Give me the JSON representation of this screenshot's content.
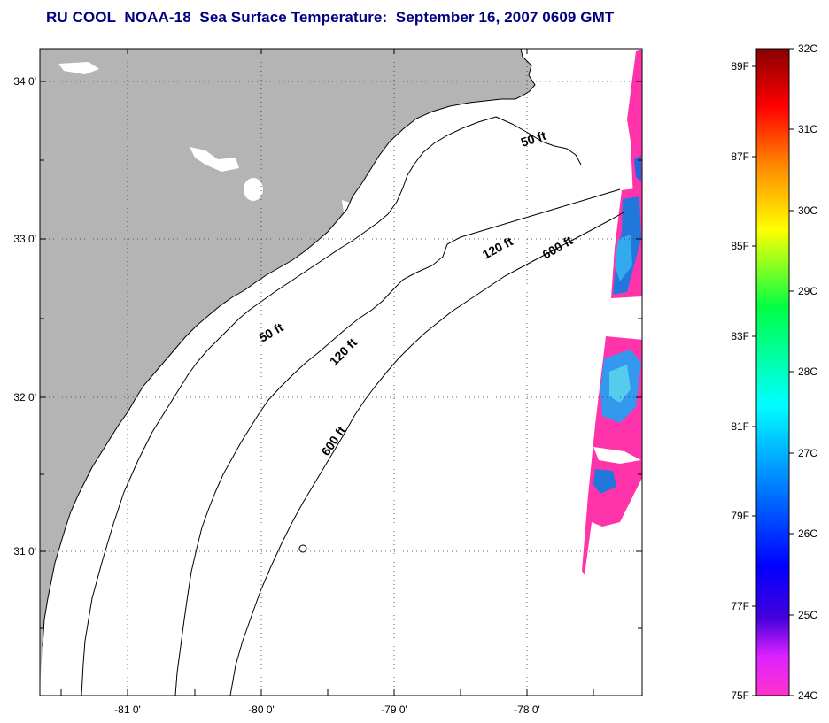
{
  "title": "RU COOL  NOAA-18  Sea Surface Temperature:  September 16, 2007 0609 GMT",
  "map": {
    "lat_labels": [
      "34 0'",
      "33 0'",
      "32 0'",
      "31 0'"
    ],
    "lon_labels": [
      "-81 0'",
      "-80 0'",
      "-79 0'",
      "-78 0'"
    ],
    "contour_labels": [
      "50 ft",
      "120 ft",
      "600 ft",
      "50 ft",
      "120 ft",
      "600 ft"
    ],
    "colors": {
      "land": "#b4b4b4",
      "ocean": "#ffffff",
      "contour": "#000000",
      "sst_warm": "#ff33aa",
      "sst_cool": "#2288ee"
    }
  },
  "colorbar": {
    "celsius_labels": [
      "32C",
      "31C",
      "30C",
      "29C",
      "28C",
      "27C",
      "26C",
      "25C",
      "24C"
    ],
    "fahrenheit_labels": [
      "89F",
      "87F",
      "85F",
      "83F",
      "81F",
      "79F",
      "77F",
      "75F"
    ],
    "range_c": [
      24,
      32
    ],
    "gradient": [
      "#ff33cc",
      "#dd22ff",
      "#0000ff",
      "#0099ff",
      "#00ffff",
      "#00ff66",
      "#ffff00",
      "#ff8800",
      "#ff0000",
      "#880000"
    ]
  }
}
